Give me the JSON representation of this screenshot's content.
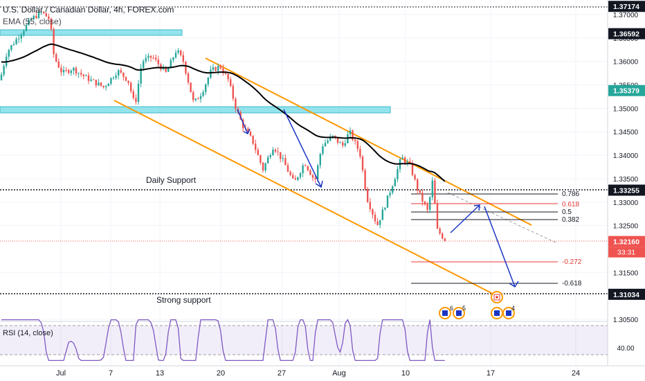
{
  "header": {
    "symbol_line": "U.S. Dollar / Canadian Dollar, 4h, FOREX.com",
    "indicator_line": "EMA (55, close)"
  },
  "chart_data": {
    "type": "candlestick",
    "symbol": "U.S. Dollar / Canadian Dollar",
    "timeframe": "4h",
    "exchange": "FOREX.com",
    "ylim": [
      1.3028,
      1.3725
    ],
    "x_ticks": [
      "Jul",
      "7",
      "13",
      "20",
      "27",
      "Aug",
      "10",
      "17",
      "24"
    ],
    "y_ticks": [
      "1.37000",
      "1.36500",
      "1.36000",
      "1.35500",
      "1.35000",
      "1.34500",
      "1.34000",
      "1.33500",
      "1.33000",
      "1.32500",
      "1.31500",
      "1.30500"
    ],
    "price_labels": [
      {
        "text": "1.37174",
        "value": 1.37174,
        "color": "#131722"
      },
      {
        "text": "1.36592",
        "value": 1.36592,
        "color": "#131722"
      },
      {
        "text": "1.35379",
        "value": 1.35379,
        "color": "#26a69a"
      },
      {
        "text": "1.33255",
        "value": 1.33255,
        "color": "#131722"
      },
      {
        "text": "1.32160",
        "value": 1.3216,
        "color": "#ef5350"
      },
      {
        "text": "1.31034",
        "value": 1.31034,
        "color": "#131722"
      }
    ],
    "countdown": "33:31",
    "annotations": {
      "daily_support": "Daily Support",
      "strong_support": "Strong support"
    },
    "fib_levels": [
      {
        "label": "0.786",
        "color": "#131722"
      },
      {
        "label": "0.618",
        "color": "#e53935"
      },
      {
        "label": "0.5",
        "color": "#131722"
      },
      {
        "label": "0.382",
        "color": "#131722"
      },
      {
        "label": "-0.272",
        "color": "#e53935"
      },
      {
        "label": "-0.618",
        "color": "#131722"
      }
    ],
    "events": {
      "group1": [
        "6",
        "5"
      ],
      "group2": [
        "4"
      ]
    },
    "rsi": {
      "label": "RSI (14, close)",
      "level_tick": "40.00",
      "levels": [
        70,
        30
      ]
    },
    "colors": {
      "up": "#26a69a",
      "down": "#ef5350",
      "ema": "#000000",
      "channel": "#ff9800",
      "zone": "#80deea",
      "arrow": "#1a35c4",
      "rsi": "#7e57c2"
    }
  }
}
